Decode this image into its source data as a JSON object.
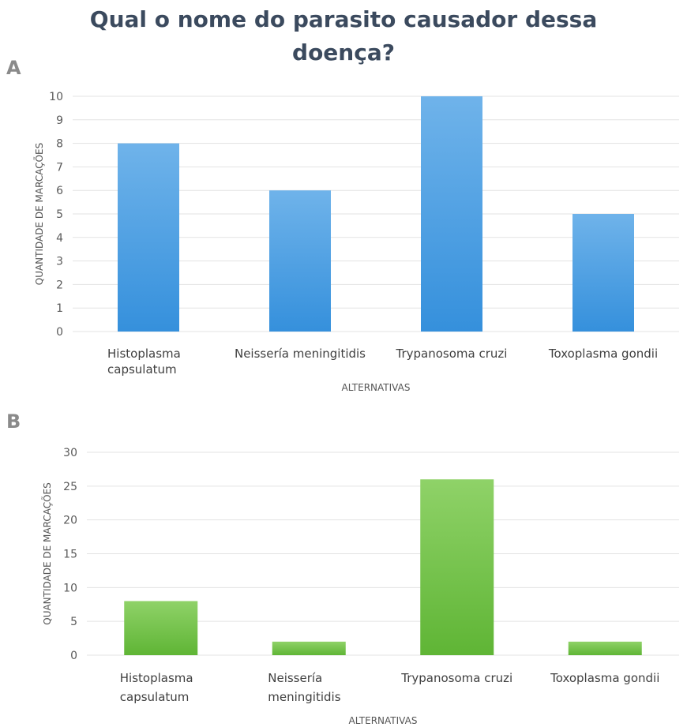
{
  "title_lines": [
    "Qual o nome do parasito causador dessa",
    "doença?"
  ],
  "panels": [
    "A",
    "B"
  ],
  "chart_data": [
    {
      "panel": "A",
      "type": "bar",
      "categories": [
        [
          "Histoplasma",
          "capsulatum"
        ],
        [
          "Neissería meningitidis"
        ],
        [
          "Trypanosoma cruzi"
        ],
        [
          "Toxoplasma gondii"
        ]
      ],
      "values": [
        8,
        6,
        10,
        5
      ],
      "xlabel": "ALTERNATIVAS",
      "ylabel": "QUANTIDADE DE MARCAÇÕES",
      "ylim": [
        0,
        10
      ],
      "yticks": [
        0,
        1,
        2,
        3,
        4,
        5,
        6,
        7,
        8,
        9,
        10
      ],
      "grid": true,
      "color": "#4a9ee0"
    },
    {
      "panel": "B",
      "type": "bar",
      "categories": [
        [
          "Histoplasma",
          "capsulatum"
        ],
        [
          "Neissería",
          "meningitidis"
        ],
        [
          "Trypanosoma cruzi"
        ],
        [
          "Toxoplasma gondii"
        ]
      ],
      "values": [
        8,
        2,
        26,
        2
      ],
      "xlabel": "ALTERNATIVAS",
      "ylabel": "QUANTIDADE DE MARCAÇÕES",
      "ylim": [
        0,
        30
      ],
      "yticks": [
        0,
        5,
        10,
        15,
        20,
        25,
        30
      ],
      "grid": true,
      "color": "#6cbe45"
    }
  ]
}
